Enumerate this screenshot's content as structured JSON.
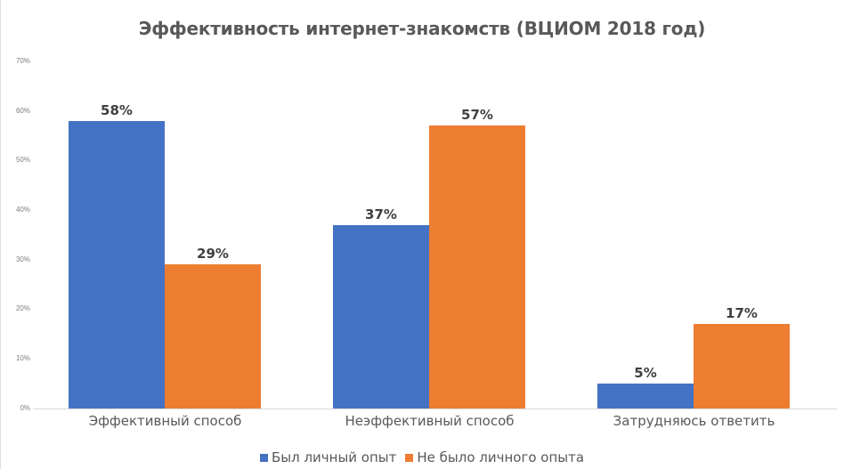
{
  "chart_data": {
    "type": "bar",
    "title": "Эффективность интернет-знакомств (ВЦИОМ 2018 год)",
    "xlabel": "",
    "ylabel": "",
    "ylim": [
      0,
      70
    ],
    "yticks": [
      "0%",
      "10%",
      "20%",
      "30%",
      "40%",
      "50%",
      "60%",
      "70%"
    ],
    "categories": [
      "Эффективный способ",
      "Неэффективный способ",
      "Затрудняюсь ответить"
    ],
    "series": [
      {
        "name": "Был личный опыт",
        "color": "#4472c4",
        "values": [
          58,
          37,
          5
        ],
        "labels": [
          "58%",
          "37%",
          "5%"
        ]
      },
      {
        "name": "Не было личного опыта",
        "color": "#ed7d31",
        "values": [
          29,
          57,
          17
        ],
        "labels": [
          "29%",
          "57%",
          "17%"
        ]
      }
    ],
    "grid": false,
    "legend_position": "bottom",
    "data_labels": true
  }
}
